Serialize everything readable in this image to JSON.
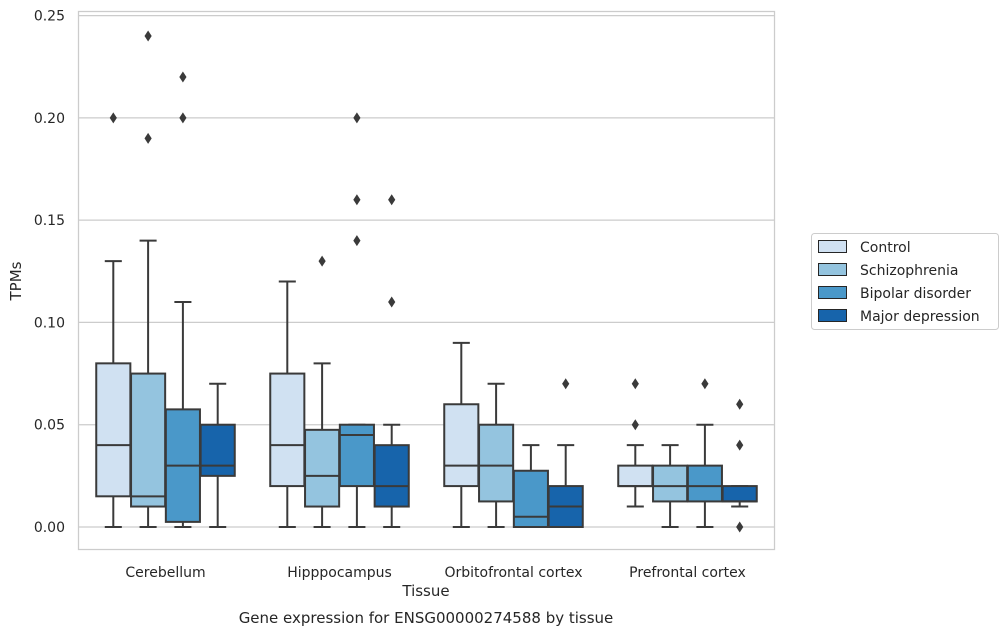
{
  "chart_data": {
    "type": "boxplot",
    "caption": "Gene expression for ENSG00000274588 by tissue",
    "xlabel": "Tissue",
    "ylabel": "TPMs",
    "ylim": [
      -0.011,
      0.252
    ],
    "yticks": [
      "0.00",
      "0.05",
      "0.10",
      "0.15",
      "0.20",
      "0.25"
    ],
    "grid": "horizontal",
    "legend_position": "right",
    "categories": [
      "Cerebellum",
      "Hipppocampus",
      "Orbitofrontal cortex",
      "Prefrontal cortex"
    ],
    "series": [
      {
        "name": "Control",
        "color": "#d0e1f2",
        "boxes": [
          {
            "whislo": 0.0,
            "q1": 0.015,
            "med": 0.04,
            "q3": 0.08,
            "whishi": 0.13,
            "fliers": [
              0.2
            ]
          },
          {
            "whislo": 0.0,
            "q1": 0.02,
            "med": 0.04,
            "q3": 0.075,
            "whishi": 0.12,
            "fliers": []
          },
          {
            "whislo": 0.0,
            "q1": 0.02,
            "med": 0.03,
            "q3": 0.06,
            "whishi": 0.09,
            "fliers": []
          },
          {
            "whislo": 0.01,
            "q1": 0.02,
            "med": 0.02,
            "q3": 0.03,
            "whishi": 0.04,
            "fliers": [
              0.05,
              0.07
            ]
          }
        ]
      },
      {
        "name": "Schizophrenia",
        "color": "#94c4df",
        "boxes": [
          {
            "whislo": 0.0,
            "q1": 0.01,
            "med": 0.015,
            "q3": 0.075,
            "whishi": 0.14,
            "fliers": [
              0.19,
              0.24
            ]
          },
          {
            "whislo": 0.0,
            "q1": 0.01,
            "med": 0.025,
            "q3": 0.0475,
            "whishi": 0.08,
            "fliers": [
              0.13
            ]
          },
          {
            "whislo": 0.0,
            "q1": 0.0125,
            "med": 0.03,
            "q3": 0.05,
            "whishi": 0.07,
            "fliers": []
          },
          {
            "whislo": 0.0,
            "q1": 0.0125,
            "med": 0.02,
            "q3": 0.03,
            "whishi": 0.04,
            "fliers": []
          }
        ]
      },
      {
        "name": "Bipolar disorder",
        "color": "#4a98c9",
        "boxes": [
          {
            "whislo": 0.0,
            "q1": 0.0025,
            "med": 0.03,
            "q3": 0.0575,
            "whishi": 0.11,
            "fliers": [
              0.2,
              0.22
            ]
          },
          {
            "whislo": 0.0,
            "q1": 0.02,
            "med": 0.045,
            "q3": 0.05,
            "whishi": 0.05,
            "fliers": [
              0.14,
              0.16,
              0.2
            ]
          },
          {
            "whislo": 0.0,
            "q1": 0.0,
            "med": 0.005,
            "q3": 0.0275,
            "whishi": 0.04,
            "fliers": []
          },
          {
            "whislo": 0.0,
            "q1": 0.0125,
            "med": 0.02,
            "q3": 0.03,
            "whishi": 0.05,
            "fliers": [
              0.07
            ]
          }
        ]
      },
      {
        "name": "Major depression",
        "color": "#1764ab",
        "boxes": [
          {
            "whislo": 0.0,
            "q1": 0.025,
            "med": 0.03,
            "q3": 0.05,
            "whishi": 0.07,
            "fliers": []
          },
          {
            "whislo": 0.0,
            "q1": 0.01,
            "med": 0.02,
            "q3": 0.04,
            "whishi": 0.05,
            "fliers": [
              0.11,
              0.16
            ]
          },
          {
            "whislo": 0.0,
            "q1": 0.0,
            "med": 0.01,
            "q3": 0.02,
            "whishi": 0.04,
            "fliers": [
              0.07
            ]
          },
          {
            "whislo": 0.01,
            "q1": 0.0125,
            "med": 0.0125,
            "q3": 0.02,
            "whishi": 0.02,
            "fliers": [
              0.0,
              0.04,
              0.06
            ]
          }
        ]
      }
    ]
  }
}
